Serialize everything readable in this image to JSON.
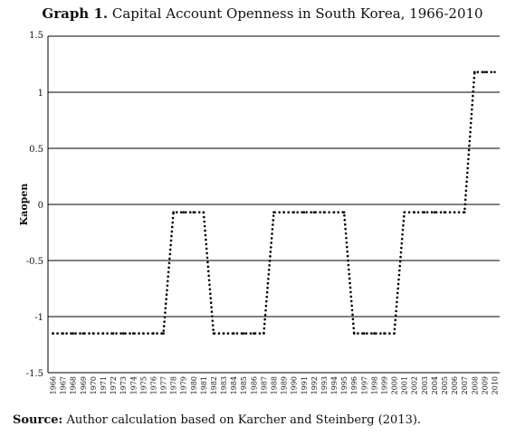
{
  "title_prefix": "Graph 1.",
  "title_text": "Capital Account Openness in South Korea, 1966-2010",
  "source_prefix": "Source:",
  "source_text": "Author calculation based on Karcher and Steinberg (2013).",
  "chart_data": {
    "type": "line",
    "title": "Graph 1. Capital Account Openness in South Korea, 1966-2010",
    "xlabel": "",
    "ylabel": "Kaopen",
    "ylim": [
      -1.5,
      1.5
    ],
    "yticks": [
      1.5,
      1,
      0.5,
      0,
      -0.5,
      -1,
      -1.5
    ],
    "ytick_labels": [
      "1.5",
      "1",
      "0.5",
      "0",
      "-0.5",
      "-1",
      "-1.5"
    ],
    "grid": "horizontal",
    "line_style": "dotted",
    "line_color": "#000000",
    "x": [
      1966,
      1967,
      1968,
      1969,
      1970,
      1971,
      1972,
      1973,
      1974,
      1975,
      1976,
      1977,
      1978,
      1979,
      1980,
      1981,
      1982,
      1983,
      1984,
      1985,
      1986,
      1987,
      1988,
      1989,
      1990,
      1991,
      1992,
      1993,
      1994,
      1995,
      1996,
      1997,
      1998,
      1999,
      2000,
      2001,
      2002,
      2003,
      2004,
      2005,
      2006,
      2007,
      2008,
      2009,
      2010
    ],
    "series": [
      {
        "values": [
          -1.15,
          -1.15,
          -1.15,
          -1.15,
          -1.15,
          -1.15,
          -1.15,
          -1.15,
          -1.15,
          -1.15,
          -1.15,
          -1.15,
          -0.07,
          -0.07,
          -0.07,
          -0.07,
          -1.15,
          -1.15,
          -1.15,
          -1.15,
          -1.15,
          -1.15,
          -0.07,
          -0.07,
          -0.07,
          -0.07,
          -0.07,
          -0.07,
          -0.07,
          -0.07,
          -1.15,
          -1.15,
          -1.15,
          -1.15,
          -1.15,
          -0.07,
          -0.07,
          -0.07,
          -0.07,
          -0.07,
          -0.07,
          -0.07,
          1.18,
          1.18,
          1.18
        ]
      }
    ]
  }
}
